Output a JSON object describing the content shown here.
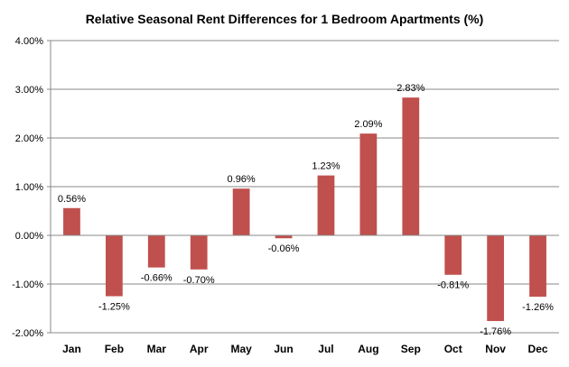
{
  "chart_data": {
    "type": "bar",
    "title": "Relative Seasonal Rent Differences for 1 Bedroom Apartments (%)",
    "xlabel": "",
    "ylabel": "",
    "categories": [
      "Jan",
      "Feb",
      "Mar",
      "Apr",
      "May",
      "Jun",
      "Jul",
      "Aug",
      "Sep",
      "Oct",
      "Nov",
      "Dec"
    ],
    "values": [
      0.56,
      -1.25,
      -0.66,
      -0.7,
      0.96,
      -0.06,
      1.23,
      2.09,
      2.83,
      -0.81,
      -1.76,
      -1.26
    ],
    "data_labels": [
      "0.56%",
      "-1.25%",
      "-0.66%",
      "-0.70%",
      "0.96%",
      "-0.06%",
      "1.23%",
      "2.09%",
      "2.83%",
      "-0.81%",
      "-1.76%",
      "-1.26%"
    ],
    "ylim": [
      -2,
      4
    ],
    "yticks": [
      4,
      3,
      2,
      1,
      0,
      -1,
      -2
    ],
    "ytick_labels": [
      "4.00%",
      "3.00%",
      "2.00%",
      "1.00%",
      "0.00%",
      "-1.00%",
      "-2.00%"
    ],
    "grid": true,
    "bar_color": "#c0504d",
    "grid_color": "#888888"
  }
}
